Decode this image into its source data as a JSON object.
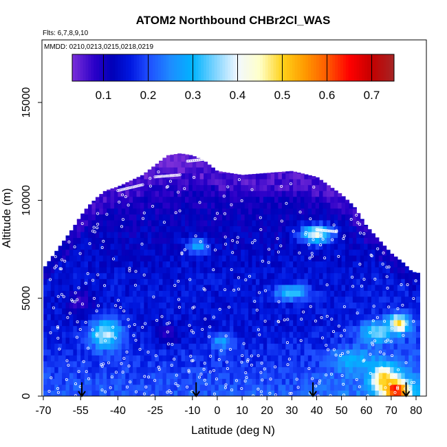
{
  "chart_data": {
    "type": "heatmap",
    "title": "ATOM2 Northbound CHBr2Cl_WAS",
    "flights_text": "Flts: 6,7,8,9,10",
    "dates_text": "MMDD: 0210,0213,0215,0218,0219",
    "xlabel": "Latitude (deg N)",
    "ylabel": "Altitude (m)",
    "xlim": [
      -70,
      80
    ],
    "ylim": [
      0,
      17500
    ],
    "xticks": [
      "-70",
      "-55",
      "-40",
      "-25",
      "-10",
      "0",
      "10",
      "20",
      "30",
      "40",
      "50",
      "60",
      "70",
      "80"
    ],
    "xtick_values": [
      -70,
      -55,
      -40,
      -25,
      -10,
      0,
      10,
      20,
      30,
      40,
      50,
      60,
      70,
      80
    ],
    "yticks": [
      "0",
      "5000",
      "10000",
      "15000"
    ],
    "ytick_values": [
      0,
      5000,
      10000,
      15000
    ],
    "colorbar": {
      "range": [
        0.03,
        0.75
      ],
      "tick_labels": [
        "0.1",
        "0.2",
        "0.3",
        "0.4",
        "0.5",
        "0.6",
        "0.7"
      ],
      "tick_values": [
        0.1,
        0.2,
        0.3,
        0.4,
        0.5,
        0.6,
        0.7
      ],
      "stops": [
        {
          "v": 0.03,
          "c": "#7b2fd9"
        },
        {
          "v": 0.08,
          "c": "#2a00c8"
        },
        {
          "v": 0.12,
          "c": "#0000b8"
        },
        {
          "v": 0.16,
          "c": "#0018e0"
        },
        {
          "v": 0.2,
          "c": "#1f4cff"
        },
        {
          "v": 0.25,
          "c": "#1e8cff"
        },
        {
          "v": 0.3,
          "c": "#00b4ff"
        },
        {
          "v": 0.35,
          "c": "#7fd4ff"
        },
        {
          "v": 0.4,
          "c": "#f2f8ff"
        },
        {
          "v": 0.45,
          "c": "#ffffc8"
        },
        {
          "v": 0.5,
          "c": "#ffd21a"
        },
        {
          "v": 0.55,
          "c": "#ff9a00"
        },
        {
          "v": 0.6,
          "c": "#ff5a00"
        },
        {
          "v": 0.65,
          "c": "#ff0000"
        },
        {
          "v": 0.7,
          "c": "#c40000"
        },
        {
          "v": 0.75,
          "c": "#a52525"
        }
      ]
    },
    "envelope_lat": [
      -70,
      -66,
      -62,
      -58,
      -55,
      -52,
      -48,
      -45,
      -40,
      -35,
      -30,
      -25,
      -20,
      -15,
      -10,
      -5,
      0,
      10,
      20,
      30,
      40,
      50,
      55,
      60,
      65,
      70,
      75,
      78,
      80
    ],
    "envelope_top": [
      6500,
      7200,
      7900,
      8600,
      9200,
      9700,
      10200,
      10500,
      10700,
      11000,
      11300,
      11800,
      12300,
      12400,
      12300,
      12000,
      11500,
      11300,
      11400,
      11500,
      11200,
      10300,
      9700,
      8700,
      8000,
      7300,
      6800,
      6400,
      6300
    ],
    "hotspots": [
      {
        "lat": 72,
        "alt": 300,
        "value": 0.68,
        "dlat": 5,
        "dalt": 500
      },
      {
        "lat": 67,
        "alt": 900,
        "value": 0.52,
        "dlat": 5,
        "dalt": 700
      },
      {
        "lat": 73,
        "alt": 3700,
        "value": 0.5,
        "dlat": 4,
        "dalt": 450
      },
      {
        "lat": 64,
        "alt": 3300,
        "value": 0.36,
        "dlat": 6,
        "dalt": 500
      },
      {
        "lat": -45,
        "alt": 3200,
        "value": 0.38,
        "dlat": 6,
        "dalt": 700
      },
      {
        "lat": 40,
        "alt": 8300,
        "value": 0.4,
        "dlat": 6,
        "dalt": 450
      },
      {
        "lat": 30,
        "alt": 5300,
        "value": 0.33,
        "dlat": 6,
        "dalt": 350
      },
      {
        "lat": 55,
        "alt": 1800,
        "value": 0.3,
        "dlat": 8,
        "dalt": 600
      },
      {
        "lat": -8,
        "alt": 7700,
        "value": 0.3,
        "dlat": 4,
        "dalt": 400
      },
      {
        "lat": 2,
        "alt": 2800,
        "value": 0.28,
        "dlat": 4,
        "dalt": 400
      }
    ],
    "lowcells": [
      {
        "lat": -20,
        "alt": 11500,
        "value": 0.05,
        "dlat": 10,
        "dalt": 800
      },
      {
        "lat": -40,
        "alt": 10300,
        "value": 0.07,
        "dlat": 8,
        "dalt": 500
      },
      {
        "lat": 35,
        "alt": 10900,
        "value": 0.06,
        "dlat": 8,
        "dalt": 500
      },
      {
        "lat": -55,
        "alt": 4800,
        "value": 0.07,
        "dlat": 5,
        "dalt": 600
      },
      {
        "lat": -20,
        "alt": 3100,
        "value": 0.08,
        "dlat": 5,
        "dalt": 500
      }
    ],
    "arrows_lat": [
      -54.5,
      -8.5,
      38.5,
      76
    ]
  }
}
